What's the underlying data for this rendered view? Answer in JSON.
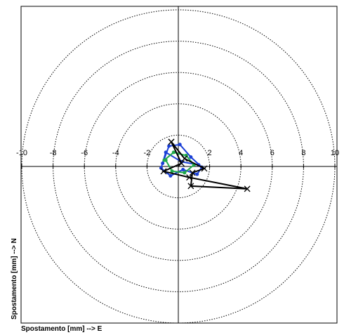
{
  "chart_data": {
    "type": "line",
    "x_label": "Spostamento [mm] --> E",
    "y_label": "Spostamento [mm] --> N",
    "xlim": [
      -10,
      10
    ],
    "ylim": [
      -10,
      10
    ],
    "xticks": [
      -10,
      -8,
      -6,
      -4,
      -2,
      2,
      4,
      6,
      8,
      10
    ],
    "rings": [
      2,
      4,
      6,
      8,
      10
    ],
    "series": [
      {
        "color": "#1a3fd6",
        "x": [
          -1.0,
          -0.6,
          0.1,
          0.8,
          1.5,
          1.2,
          0.3,
          -0.5,
          -1.1,
          -0.8,
          0.2,
          1.3
        ],
        "y": [
          0.2,
          1.3,
          1.4,
          0.6,
          -0.05,
          -0.5,
          -0.2,
          -0.6,
          -0.1,
          0.9,
          0.3,
          0.1
        ]
      },
      {
        "color": "#1fa84a",
        "x": [
          -0.9,
          -0.3,
          0.5,
          1.0,
          0.4,
          -0.4,
          -0.8
        ],
        "y": [
          0.4,
          0.9,
          0.7,
          0.1,
          -0.4,
          -0.3,
          0.4
        ]
      },
      {
        "color": "#000000",
        "marker": "x",
        "x": [
          -0.45,
          0.4,
          1.66,
          0.9,
          0.8,
          4.4,
          0.7,
          -0.94,
          0.2,
          -0.45
        ],
        "y": [
          1.57,
          0.5,
          -0.13,
          -0.4,
          -1.25,
          -1.43,
          -0.7,
          -0.31,
          0.2,
          1.57
        ]
      }
    ]
  }
}
